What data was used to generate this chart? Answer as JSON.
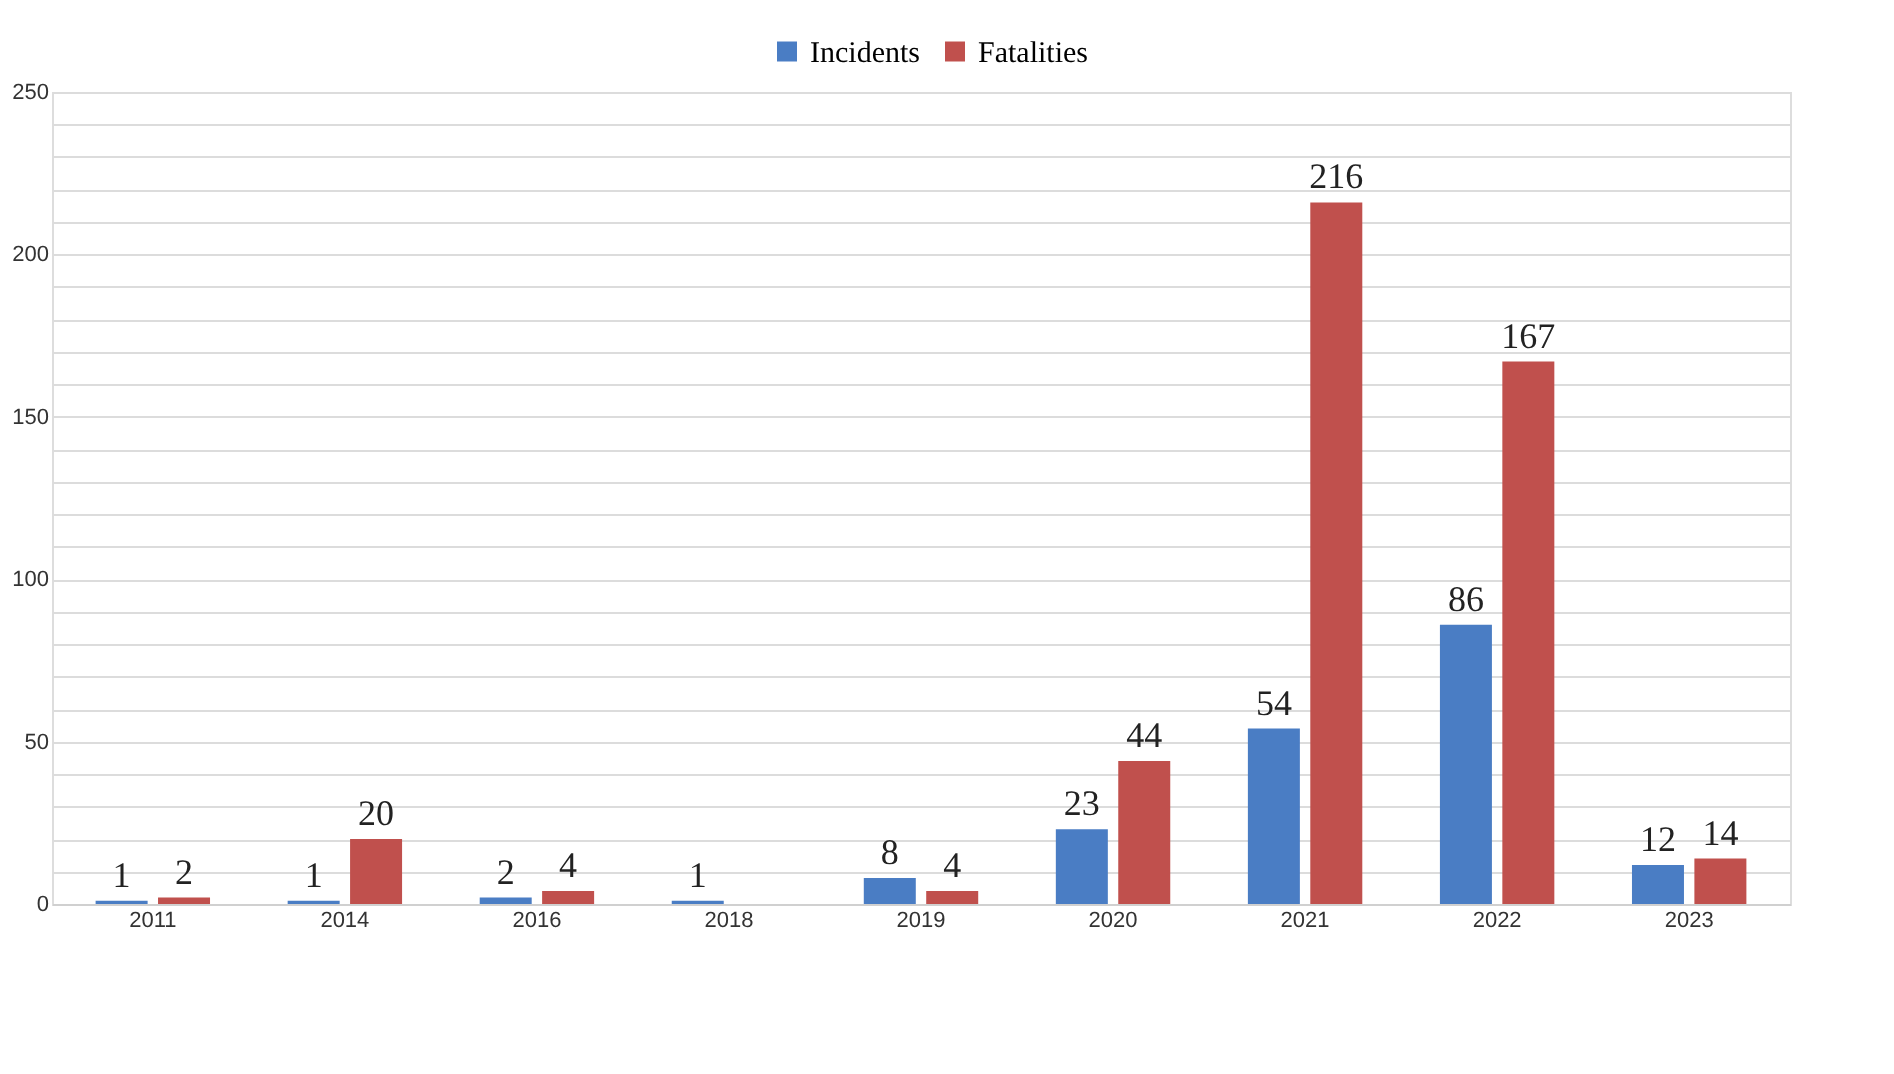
{
  "chart_data": {
    "type": "bar",
    "categories": [
      "2011",
      "2014",
      "2016",
      "2018",
      "2019",
      "2020",
      "2021",
      "2022",
      "2023"
    ],
    "series": [
      {
        "name": "Incidents",
        "color": "#4a7dc4",
        "values": [
          1,
          1,
          2,
          1,
          8,
          23,
          54,
          86,
          12
        ]
      },
      {
        "name": "Fatalities",
        "color": "#c0504d",
        "values": [
          2,
          20,
          4,
          null,
          4,
          44,
          216,
          167,
          14
        ]
      }
    ],
    "ylim": [
      0,
      250
    ],
    "yticks": [
      0,
      {
        "value": 10,
        "label": null
      },
      {
        "value": 20,
        "label": null
      },
      {
        "value": 30,
        "label": null
      },
      {
        "value": 40,
        "label": null
      },
      50,
      {
        "value": 60,
        "label": null
      },
      {
        "value": 70,
        "label": null
      },
      {
        "value": 80,
        "label": null
      },
      {
        "value": 90,
        "label": null
      },
      100,
      {
        "value": 110,
        "label": null
      },
      {
        "value": 120,
        "label": null
      },
      {
        "value": 130,
        "label": null
      },
      {
        "value": 140,
        "label": null
      },
      150,
      {
        "value": 160,
        "label": null
      },
      {
        "value": 170,
        "label": null
      },
      {
        "value": 180,
        "label": null
      },
      {
        "value": 190,
        "label": null
      },
      200,
      {
        "value": 210,
        "label": null
      },
      {
        "value": 220,
        "label": null
      },
      {
        "value": 230,
        "label": null
      },
      {
        "value": 240,
        "label": null
      },
      250
    ],
    "grid": "y",
    "legend": "top",
    "data_labels": true
  }
}
